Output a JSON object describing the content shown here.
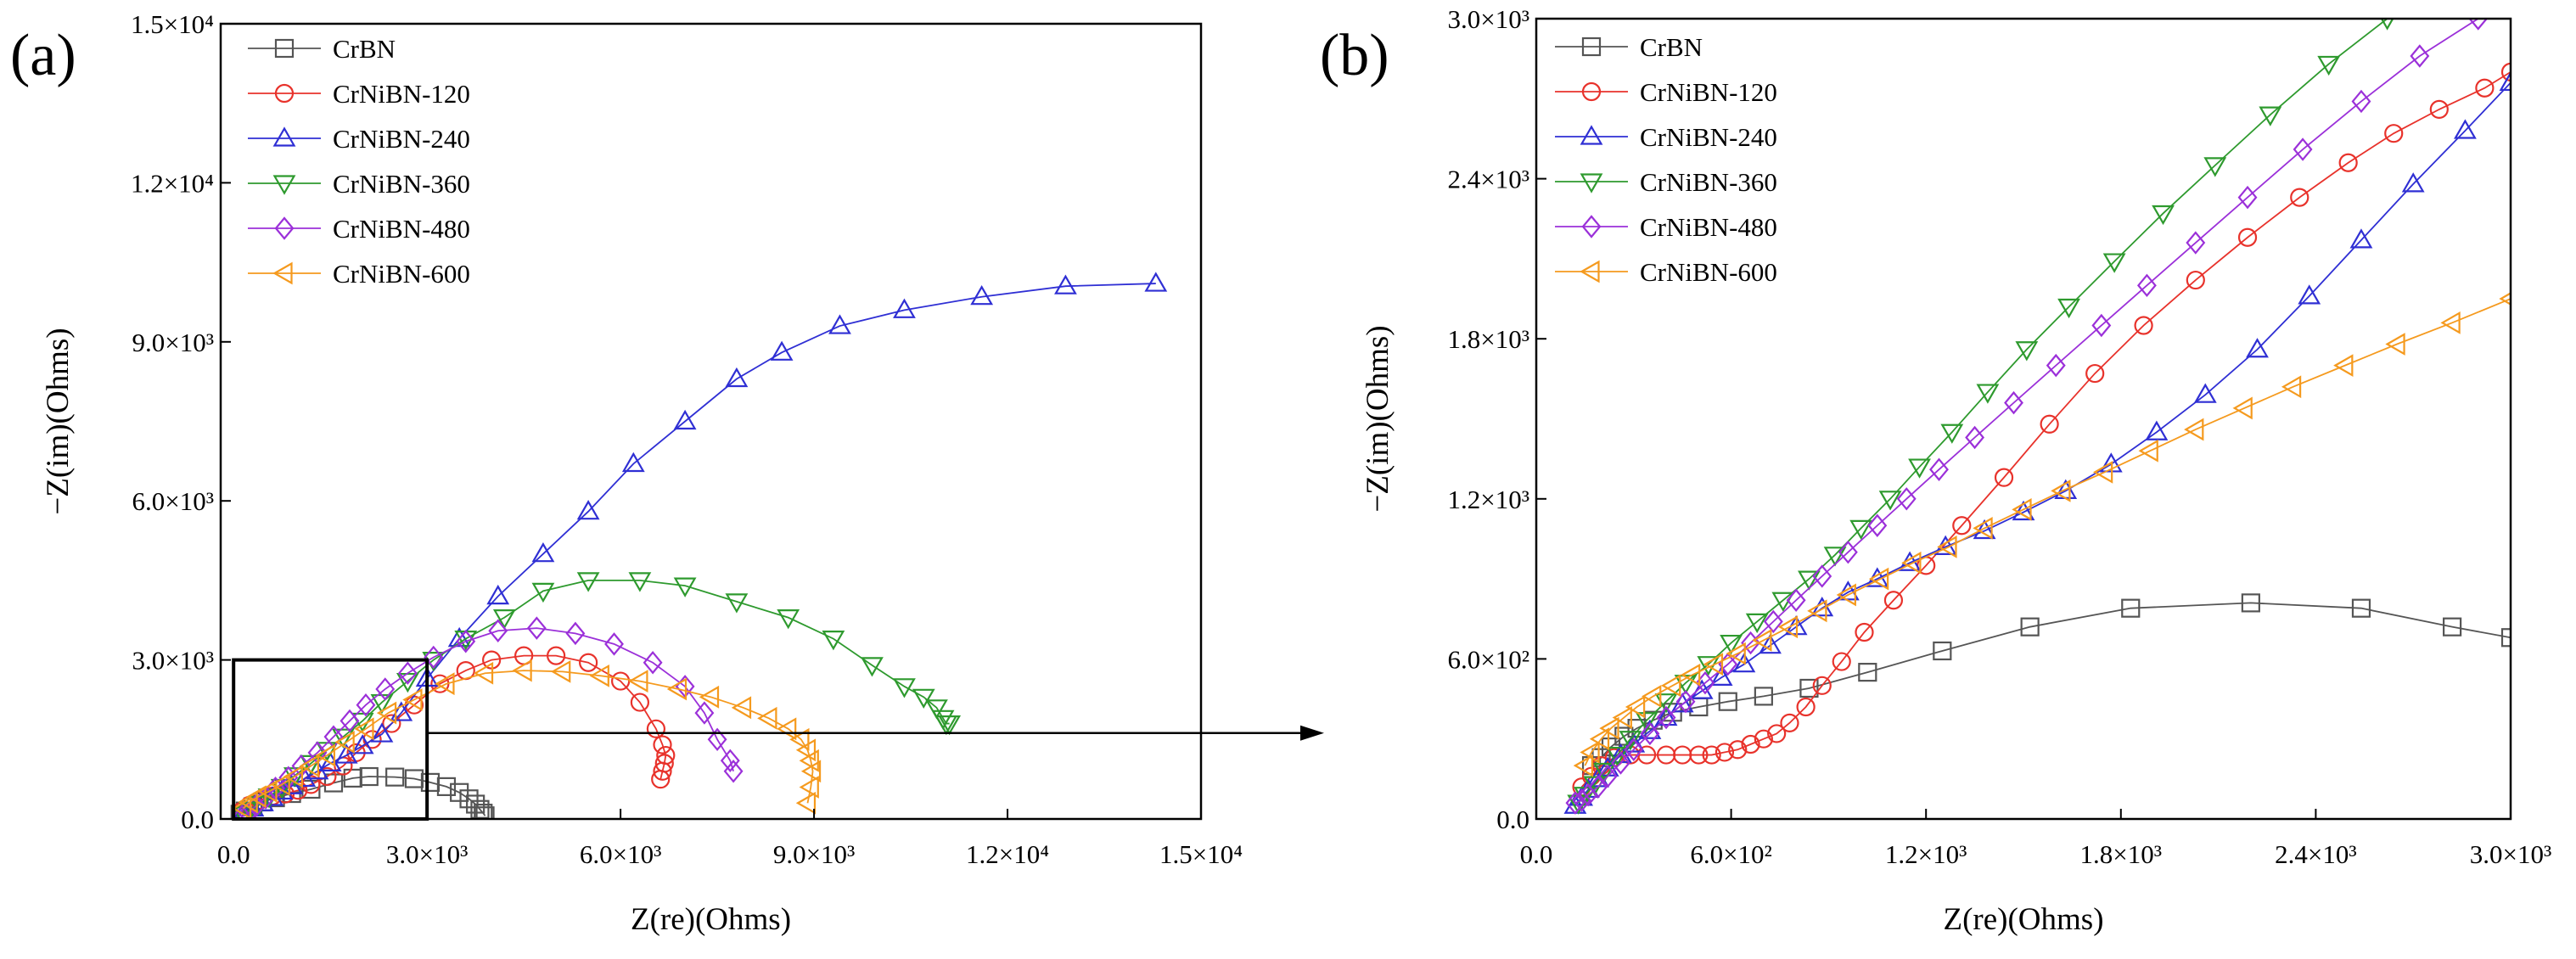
{
  "figure": {
    "panel_a_label": "(a)",
    "panel_b_label": "(b)"
  },
  "chart_data": [
    {
      "type": "scatter",
      "panel": "a",
      "xlabel": "Z(re)(Ohms)",
      "ylabel": "−Z(im)(Ohms)",
      "xlim": [
        -200,
        15000
      ],
      "ylim": [
        0,
        15000
      ],
      "x_ticks": [
        "0.0",
        "3.0×10³",
        "6.0×10³",
        "9.0×10³",
        "1.2×10⁴",
        "1.5×10⁴"
      ],
      "y_ticks": [
        "0.0",
        "3.0×10³",
        "6.0×10³",
        "9.0×10³",
        "1.2×10⁴",
        "1.5×10⁴"
      ],
      "x_tick_values": [
        0,
        3000,
        6000,
        9000,
        12000,
        15000
      ],
      "y_tick_values": [
        0,
        3000,
        6000,
        9000,
        12000,
        15000
      ],
      "legend_position": "top-left",
      "grid": false,
      "zoom_box": {
        "x": [
          0,
          3000
        ],
        "y": [
          0,
          3000
        ]
      },
      "series": [
        {
          "name": "CrBN",
          "color": "#555555",
          "marker": "square",
          "x": [
            100,
            180,
            300,
            450,
            650,
            900,
            1200,
            1550,
            1850,
            2100,
            2500,
            2800,
            3050,
            3300,
            3500,
            3650,
            3750,
            3820,
            3870,
            3900
          ],
          "y": [
            90,
            150,
            230,
            320,
            400,
            480,
            560,
            680,
            770,
            800,
            790,
            760,
            690,
            610,
            500,
            380,
            280,
            180,
            110,
            60
          ]
        },
        {
          "name": "CrNiBN-120",
          "color": "#e8322b",
          "marker": "circle",
          "x": [
            130,
            250,
            400,
            600,
            800,
            1000,
            1200,
            1450,
            1700,
            1900,
            2150,
            2450,
            2800,
            3200,
            3600,
            4000,
            4500,
            5000,
            5500,
            6000,
            6300,
            6550,
            6650,
            6700,
            6680,
            6650,
            6620
          ],
          "y": [
            150,
            260,
            350,
            430,
            470,
            540,
            650,
            800,
            1000,
            1250,
            1500,
            1800,
            2150,
            2550,
            2800,
            3000,
            3080,
            3080,
            2950,
            2600,
            2200,
            1700,
            1400,
            1200,
            1050,
            900,
            750
          ]
        },
        {
          "name": "CrNiBN-240",
          "color": "#2f2fd4",
          "marker": "triangle-up",
          "x": [
            130,
            200,
            300,
            450,
            600,
            750,
            900,
            1100,
            1300,
            1500,
            1750,
            2000,
            2300,
            2600,
            3000,
            3500,
            4100,
            4800,
            5500,
            6200,
            7000,
            7800,
            8500,
            9400,
            10400,
            11600,
            12900,
            14300
          ],
          "y": [
            60,
            120,
            200,
            300,
            400,
            520,
            620,
            760,
            900,
            1050,
            1200,
            1380,
            1600,
            2000,
            2650,
            3400,
            4200,
            5000,
            5800,
            6700,
            7500,
            8300,
            8800,
            9300,
            9600,
            9850,
            10050,
            10100
          ]
        },
        {
          "name": "CrNiBN-360",
          "color": "#2e9a2e",
          "marker": "triangle-down",
          "x": [
            150,
            250,
            400,
            550,
            750,
            950,
            1200,
            1450,
            1700,
            2000,
            2300,
            2700,
            3100,
            3600,
            4200,
            4800,
            5500,
            6300,
            7000,
            7800,
            8600,
            9300,
            9900,
            10400,
            10700,
            10900,
            11000,
            11050,
            11100
          ],
          "y": [
            80,
            170,
            280,
            420,
            600,
            820,
            1050,
            1300,
            1550,
            1850,
            2200,
            2600,
            3000,
            3400,
            3800,
            4300,
            4500,
            4500,
            4400,
            4100,
            3800,
            3400,
            2900,
            2500,
            2300,
            2100,
            1900,
            1800,
            1800
          ]
        },
        {
          "name": "CrNiBN-480",
          "color": "#9b30d9",
          "marker": "diamond",
          "x": [
            130,
            220,
            350,
            500,
            650,
            850,
            1050,
            1300,
            1550,
            1800,
            2050,
            2350,
            2700,
            3100,
            3600,
            4100,
            4700,
            5300,
            5900,
            6500,
            7000,
            7300,
            7500,
            7700,
            7750
          ],
          "y": [
            50,
            100,
            250,
            400,
            580,
            780,
            1000,
            1250,
            1550,
            1850,
            2150,
            2450,
            2750,
            3050,
            3350,
            3550,
            3600,
            3500,
            3300,
            2950,
            2500,
            2000,
            1500,
            1100,
            900
          ]
        },
        {
          "name": "CrNiBN-600",
          "color": "#f59a1e",
          "marker": "triangle-left",
          "x": [
            150,
            250,
            380,
            550,
            750,
            950,
            1200,
            1450,
            1750,
            2050,
            2400,
            2800,
            3300,
            3900,
            4500,
            5100,
            5700,
            6300,
            6900,
            7400,
            7900,
            8300,
            8600,
            8800,
            8900,
            8950,
            8980,
            8950,
            8900
          ],
          "y": [
            200,
            320,
            420,
            520,
            650,
            800,
            1000,
            1200,
            1450,
            1700,
            2000,
            2250,
            2550,
            2750,
            2800,
            2780,
            2700,
            2600,
            2450,
            2300,
            2100,
            1900,
            1700,
            1500,
            1300,
            1100,
            900,
            600,
            300
          ]
        }
      ]
    },
    {
      "type": "scatter",
      "panel": "b",
      "xlabel": "Z(re)(Ohms)",
      "ylabel": "−Z(im)(Ohms)",
      "xlim": [
        0,
        3000
      ],
      "ylim": [
        0,
        3000
      ],
      "x_ticks": [
        "0.0",
        "6.0×10²",
        "1.2×10³",
        "1.8×10³",
        "2.4×10³",
        "3.0×10³"
      ],
      "y_ticks": [
        "0.0",
        "6.0×10²",
        "1.2×10³",
        "1.8×10³",
        "2.4×10³",
        "3.0×10³"
      ],
      "x_tick_values": [
        0,
        600,
        1200,
        1800,
        2400,
        3000
      ],
      "y_tick_values": [
        0,
        600,
        1200,
        1800,
        2400,
        3000
      ],
      "legend_position": "top-left",
      "grid": false,
      "series": [
        {
          "name": "CrBN",
          "color": "#555555",
          "marker": "square",
          "x": [
            170,
            200,
            230,
            270,
            310,
            360,
            420,
            500,
            590,
            700,
            840,
            1020,
            1250,
            1520,
            1830,
            2200,
            2540,
            2820,
            3000
          ],
          "y": [
            200,
            230,
            270,
            310,
            340,
            370,
            400,
            420,
            440,
            460,
            490,
            550,
            630,
            720,
            790,
            810,
            790,
            720,
            680
          ]
        },
        {
          "name": "CrNiBN-120",
          "color": "#e8322b",
          "marker": "circle",
          "x": [
            140,
            170,
            200,
            240,
            290,
            340,
            400,
            450,
            500,
            540,
            580,
            620,
            660,
            700,
            740,
            780,
            830,
            880,
            940,
            1010,
            1100,
            1200,
            1310,
            1440,
            1580,
            1720,
            1870,
            2030,
            2190,
            2350,
            2500,
            2640,
            2780,
            2920,
            3000
          ],
          "y": [
            120,
            160,
            200,
            230,
            240,
            240,
            240,
            240,
            240,
            240,
            250,
            260,
            280,
            300,
            320,
            360,
            420,
            500,
            590,
            700,
            820,
            950,
            1100,
            1280,
            1480,
            1670,
            1850,
            2020,
            2180,
            2330,
            2460,
            2570,
            2660,
            2740,
            2800
          ]
        },
        {
          "name": "CrNiBN-240",
          "color": "#2f2fd4",
          "marker": "triangle-up",
          "x": [
            120,
            140,
            160,
            190,
            220,
            260,
            300,
            350,
            400,
            450,
            510,
            570,
            640,
            720,
            800,
            880,
            960,
            1050,
            1150,
            1260,
            1380,
            1500,
            1630,
            1770,
            1910,
            2060,
            2220,
            2380,
            2540,
            2700,
            2860,
            3000
          ],
          "y": [
            50,
            80,
            110,
            150,
            190,
            240,
            280,
            330,
            380,
            430,
            480,
            530,
            580,
            650,
            720,
            790,
            850,
            900,
            960,
            1020,
            1080,
            1150,
            1230,
            1330,
            1450,
            1590,
            1760,
            1960,
            2170,
            2380,
            2580,
            2760
          ]
        },
        {
          "name": "CrNiBN-360",
          "color": "#2e9a2e",
          "marker": "triangle-down",
          "x": [
            130,
            150,
            180,
            210,
            250,
            290,
            340,
            400,
            460,
            530,
            600,
            680,
            760,
            840,
            920,
            1000,
            1090,
            1180,
            1280,
            1390,
            1510,
            1640,
            1780,
            1930,
            2090,
            2260,
            2440,
            2620
          ],
          "y": [
            60,
            90,
            130,
            180,
            240,
            300,
            370,
            440,
            510,
            580,
            660,
            740,
            820,
            900,
            990,
            1090,
            1200,
            1320,
            1450,
            1600,
            1760,
            1920,
            2090,
            2270,
            2450,
            2640,
            2830,
            3000
          ]
        },
        {
          "name": "CrNiBN-480",
          "color": "#9b30d9",
          "marker": "diamond",
          "x": [
            120,
            140,
            160,
            190,
            220,
            260,
            300,
            350,
            400,
            460,
            520,
            590,
            660,
            730,
            800,
            880,
            960,
            1050,
            1140,
            1240,
            1350,
            1470,
            1600,
            1740,
            1880,
            2030,
            2190,
            2360,
            2540,
            2720,
            2900
          ],
          "y": [
            60,
            70,
            90,
            120,
            160,
            210,
            260,
            320,
            380,
            440,
            510,
            580,
            660,
            740,
            820,
            910,
            1000,
            1100,
            1200,
            1310,
            1430,
            1560,
            1700,
            1850,
            2000,
            2160,
            2330,
            2510,
            2690,
            2860,
            3000
          ]
        },
        {
          "name": "CrNiBN-600",
          "color": "#f59a1e",
          "marker": "triangle-left",
          "x": [
            150,
            170,
            200,
            230,
            270,
            310,
            360,
            420,
            480,
            550,
            620,
            700,
            780,
            870,
            960,
            1060,
            1160,
            1270,
            1380,
            1500,
            1620,
            1750,
            1890,
            2030,
            2180,
            2330,
            2490,
            2650,
            2820,
            3000
          ],
          "y": [
            200,
            250,
            300,
            340,
            380,
            420,
            460,
            500,
            540,
            580,
            620,
            670,
            720,
            780,
            840,
            900,
            960,
            1020,
            1090,
            1160,
            1230,
            1300,
            1380,
            1460,
            1540,
            1620,
            1700,
            1780,
            1860,
            1950
          ]
        }
      ]
    }
  ]
}
